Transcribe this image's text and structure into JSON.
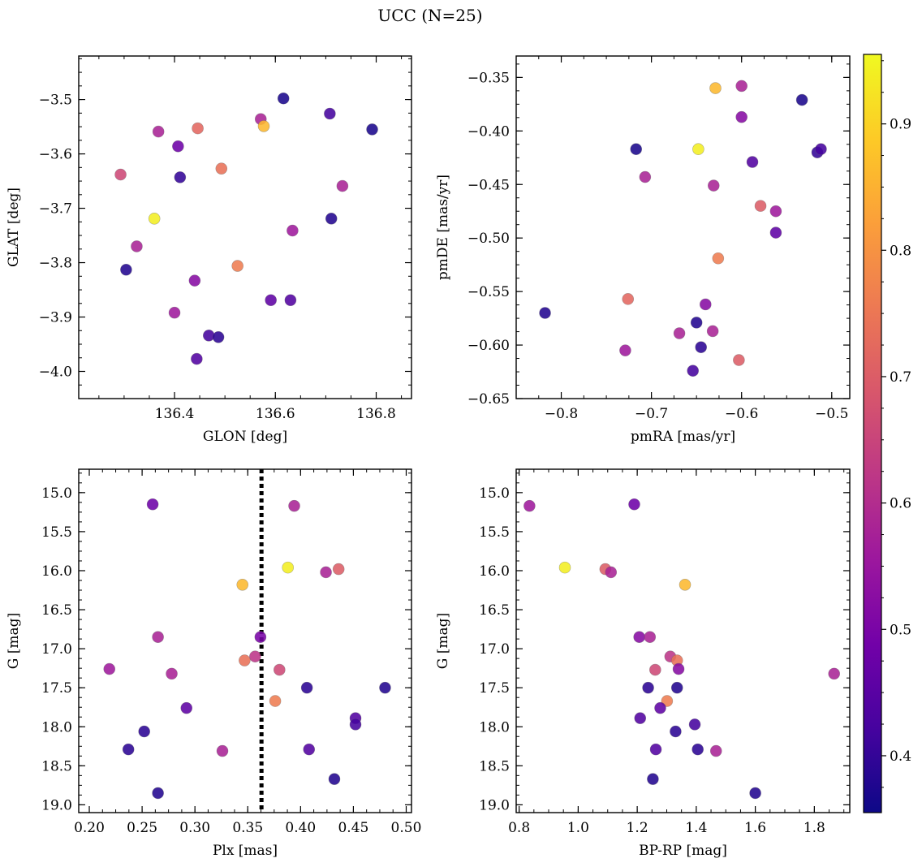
{
  "figure": {
    "title": "UCC (N=25)"
  },
  "colorbar": {
    "range": [
      0.355,
      0.955
    ],
    "ticks": [
      "0.4",
      "0.5",
      "0.6",
      "0.7",
      "0.8",
      "0.9"
    ],
    "colormap": "plasma",
    "stops": [
      "#0d0887",
      "#46039f",
      "#7201a8",
      "#9c179e",
      "#bd3786",
      "#d8576b",
      "#ed7953",
      "#fb9f3a",
      "#fdca26",
      "#f0f921"
    ]
  },
  "chart_data": [
    {
      "type": "scatter",
      "xlabel": "GLON [deg]",
      "ylabel": "GLAT [deg]",
      "xlim": [
        136.21,
        136.87
      ],
      "ylim": [
        -4.05,
        -3.42
      ],
      "xticks": [
        136.4,
        136.6,
        136.8
      ],
      "xtick_labels": [
        "136.4",
        "136.6",
        "136.8"
      ],
      "yticks": [
        -4.0,
        -3.9,
        -3.8,
        -3.7,
        -3.6,
        -3.5
      ],
      "ytick_labels": [
        "−4.0",
        "−3.9",
        "−3.8",
        "−3.7",
        "−3.6",
        "−3.5"
      ],
      "points": [
        {
          "x": 136.616,
          "y": -3.498,
          "c": 0.37
        },
        {
          "x": 136.792,
          "y": -3.555,
          "c": 0.37
        },
        {
          "x": 136.708,
          "y": -3.526,
          "c": 0.42
        },
        {
          "x": 136.571,
          "y": -3.536,
          "c": 0.58
        },
        {
          "x": 136.577,
          "y": -3.549,
          "c": 0.86
        },
        {
          "x": 136.446,
          "y": -3.553,
          "c": 0.72
        },
        {
          "x": 136.368,
          "y": -3.559,
          "c": 0.58
        },
        {
          "x": 136.407,
          "y": -3.586,
          "c": 0.48
        },
        {
          "x": 136.493,
          "y": -3.627,
          "c": 0.74
        },
        {
          "x": 136.293,
          "y": -3.638,
          "c": 0.66
        },
        {
          "x": 136.411,
          "y": -3.643,
          "c": 0.4
        },
        {
          "x": 136.733,
          "y": -3.659,
          "c": 0.58
        },
        {
          "x": 136.36,
          "y": -3.719,
          "c": 0.94
        },
        {
          "x": 136.711,
          "y": -3.719,
          "c": 0.38
        },
        {
          "x": 136.634,
          "y": -3.741,
          "c": 0.56
        },
        {
          "x": 136.325,
          "y": -3.77,
          "c": 0.58
        },
        {
          "x": 136.525,
          "y": -3.806,
          "c": 0.76
        },
        {
          "x": 136.304,
          "y": -3.813,
          "c": 0.38
        },
        {
          "x": 136.44,
          "y": -3.833,
          "c": 0.52
        },
        {
          "x": 136.591,
          "y": -3.869,
          "c": 0.46
        },
        {
          "x": 136.63,
          "y": -3.869,
          "c": 0.44
        },
        {
          "x": 136.4,
          "y": -3.892,
          "c": 0.56
        },
        {
          "x": 136.468,
          "y": -3.934,
          "c": 0.42
        },
        {
          "x": 136.487,
          "y": -3.937,
          "c": 0.39
        },
        {
          "x": 136.444,
          "y": -3.977,
          "c": 0.44
        }
      ]
    },
    {
      "type": "scatter",
      "xlabel": "pmRA [mas/yr]",
      "ylabel": "pmDE [mas/yr]",
      "xlim": [
        -0.85,
        -0.48
      ],
      "ylim": [
        -0.65,
        -0.33
      ],
      "xticks": [
        -0.8,
        -0.7,
        -0.6,
        -0.5
      ],
      "xtick_labels": [
        "−0.8",
        "−0.7",
        "−0.6",
        "−0.5"
      ],
      "yticks": [
        -0.65,
        -0.6,
        -0.55,
        -0.5,
        -0.45,
        -0.4,
        -0.35
      ],
      "ytick_labels": [
        "−0.65",
        "−0.60",
        "−0.55",
        "−0.50",
        "−0.45",
        "−0.40",
        "−0.35"
      ],
      "points": [
        {
          "x": -0.629,
          "y": -0.36,
          "c": 0.86
        },
        {
          "x": -0.6,
          "y": -0.358,
          "c": 0.58
        },
        {
          "x": -0.533,
          "y": -0.371,
          "c": 0.37
        },
        {
          "x": -0.6,
          "y": -0.387,
          "c": 0.52
        },
        {
          "x": -0.717,
          "y": -0.417,
          "c": 0.37
        },
        {
          "x": -0.648,
          "y": -0.417,
          "c": 0.94
        },
        {
          "x": -0.516,
          "y": -0.42,
          "c": 0.4
        },
        {
          "x": -0.512,
          "y": -0.417,
          "c": 0.42
        },
        {
          "x": -0.588,
          "y": -0.429,
          "c": 0.44
        },
        {
          "x": -0.707,
          "y": -0.443,
          "c": 0.58
        },
        {
          "x": -0.631,
          "y": -0.451,
          "c": 0.58
        },
        {
          "x": -0.579,
          "y": -0.47,
          "c": 0.7
        },
        {
          "x": -0.562,
          "y": -0.475,
          "c": 0.56
        },
        {
          "x": -0.562,
          "y": -0.495,
          "c": 0.46
        },
        {
          "x": -0.626,
          "y": -0.519,
          "c": 0.76
        },
        {
          "x": -0.818,
          "y": -0.57,
          "c": 0.38
        },
        {
          "x": -0.726,
          "y": -0.557,
          "c": 0.72
        },
        {
          "x": -0.64,
          "y": -0.562,
          "c": 0.52
        },
        {
          "x": -0.65,
          "y": -0.579,
          "c": 0.38
        },
        {
          "x": -0.669,
          "y": -0.589,
          "c": 0.58
        },
        {
          "x": -0.632,
          "y": -0.587,
          "c": 0.58
        },
        {
          "x": -0.645,
          "y": -0.602,
          "c": 0.39
        },
        {
          "x": -0.729,
          "y": -0.605,
          "c": 0.56
        },
        {
          "x": -0.603,
          "y": -0.614,
          "c": 0.7
        },
        {
          "x": -0.654,
          "y": -0.624,
          "c": 0.42
        }
      ]
    },
    {
      "type": "scatter",
      "xlabel": "Plx [mas]",
      "ylabel": "G [mag]",
      "xlim": [
        0.19,
        0.505
      ],
      "ylim": [
        19.1,
        14.7
      ],
      "inverted_y": true,
      "xticks": [
        0.2,
        0.25,
        0.3,
        0.35,
        0.4,
        0.45,
        0.5
      ],
      "xtick_labels": [
        "0.20",
        "0.25",
        "0.30",
        "0.35",
        "0.40",
        "0.45",
        "0.50"
      ],
      "yticks": [
        15.0,
        15.5,
        16.0,
        16.5,
        17.0,
        17.5,
        18.0,
        18.5,
        19.0
      ],
      "ytick_labels": [
        "15.0",
        "15.5",
        "16.0",
        "16.5",
        "17.0",
        "17.5",
        "18.0",
        "18.5",
        "19.0"
      ],
      "vline": {
        "x": 0.363,
        "style": "dotted"
      },
      "points": [
        {
          "x": 0.26,
          "y": 15.15,
          "c": 0.48
        },
        {
          "x": 0.394,
          "y": 15.17,
          "c": 0.58
        },
        {
          "x": 0.388,
          "y": 15.96,
          "c": 0.94
        },
        {
          "x": 0.436,
          "y": 15.98,
          "c": 0.7
        },
        {
          "x": 0.424,
          "y": 16.02,
          "c": 0.58
        },
        {
          "x": 0.345,
          "y": 16.18,
          "c": 0.86
        },
        {
          "x": 0.265,
          "y": 16.85,
          "c": 0.58
        },
        {
          "x": 0.362,
          "y": 16.85,
          "c": 0.5
        },
        {
          "x": 0.357,
          "y": 17.1,
          "c": 0.62
        },
        {
          "x": 0.347,
          "y": 17.15,
          "c": 0.74
        },
        {
          "x": 0.219,
          "y": 17.26,
          "c": 0.56
        },
        {
          "x": 0.38,
          "y": 17.27,
          "c": 0.66
        },
        {
          "x": 0.278,
          "y": 17.32,
          "c": 0.58
        },
        {
          "x": 0.406,
          "y": 17.5,
          "c": 0.39
        },
        {
          "x": 0.48,
          "y": 17.5,
          "c": 0.38
        },
        {
          "x": 0.376,
          "y": 17.67,
          "c": 0.76
        },
        {
          "x": 0.292,
          "y": 17.76,
          "c": 0.46
        },
        {
          "x": 0.452,
          "y": 17.89,
          "c": 0.44
        },
        {
          "x": 0.452,
          "y": 17.97,
          "c": 0.42
        },
        {
          "x": 0.252,
          "y": 18.06,
          "c": 0.39
        },
        {
          "x": 0.237,
          "y": 18.29,
          "c": 0.39
        },
        {
          "x": 0.408,
          "y": 18.29,
          "c": 0.44
        },
        {
          "x": 0.326,
          "y": 18.31,
          "c": 0.58
        },
        {
          "x": 0.432,
          "y": 18.67,
          "c": 0.38
        },
        {
          "x": 0.265,
          "y": 18.85,
          "c": 0.38
        }
      ]
    },
    {
      "type": "scatter",
      "xlabel": "BP-RP [mag]",
      "ylabel": "G [mag]",
      "xlim": [
        0.79,
        1.92
      ],
      "ylim": [
        19.1,
        14.7
      ],
      "inverted_y": true,
      "xticks": [
        0.8,
        1.0,
        1.2,
        1.4,
        1.6,
        1.8
      ],
      "xtick_labels": [
        "0.8",
        "1.0",
        "1.2",
        "1.4",
        "1.6",
        "1.8"
      ],
      "yticks": [
        15.0,
        15.5,
        16.0,
        16.5,
        17.0,
        17.5,
        18.0,
        18.5,
        19.0
      ],
      "ytick_labels": [
        "15.0",
        "15.5",
        "16.0",
        "16.5",
        "17.0",
        "17.5",
        "18.0",
        "18.5",
        "19.0"
      ],
      "points": [
        {
          "x": 0.835,
          "y": 15.17,
          "c": 0.56
        },
        {
          "x": 1.19,
          "y": 15.15,
          "c": 0.48
        },
        {
          "x": 0.955,
          "y": 15.96,
          "c": 0.94
        },
        {
          "x": 1.092,
          "y": 15.98,
          "c": 0.7
        },
        {
          "x": 1.111,
          "y": 16.02,
          "c": 0.58
        },
        {
          "x": 1.362,
          "y": 16.18,
          "c": 0.86
        },
        {
          "x": 1.207,
          "y": 16.85,
          "c": 0.52
        },
        {
          "x": 1.243,
          "y": 16.85,
          "c": 0.58
        },
        {
          "x": 1.312,
          "y": 17.1,
          "c": 0.62
        },
        {
          "x": 1.335,
          "y": 17.15,
          "c": 0.74
        },
        {
          "x": 1.261,
          "y": 17.27,
          "c": 0.66
        },
        {
          "x": 1.34,
          "y": 17.26,
          "c": 0.52
        },
        {
          "x": 1.867,
          "y": 17.32,
          "c": 0.58
        },
        {
          "x": 1.237,
          "y": 17.5,
          "c": 0.39
        },
        {
          "x": 1.335,
          "y": 17.5,
          "c": 0.38
        },
        {
          "x": 1.301,
          "y": 17.67,
          "c": 0.76
        },
        {
          "x": 1.278,
          "y": 17.76,
          "c": 0.46
        },
        {
          "x": 1.21,
          "y": 17.89,
          "c": 0.44
        },
        {
          "x": 1.395,
          "y": 17.97,
          "c": 0.42
        },
        {
          "x": 1.33,
          "y": 18.06,
          "c": 0.39
        },
        {
          "x": 1.263,
          "y": 18.29,
          "c": 0.44
        },
        {
          "x": 1.405,
          "y": 18.29,
          "c": 0.39
        },
        {
          "x": 1.467,
          "y": 18.31,
          "c": 0.58
        },
        {
          "x": 1.253,
          "y": 18.67,
          "c": 0.38
        },
        {
          "x": 1.6,
          "y": 18.85,
          "c": 0.38
        }
      ]
    }
  ]
}
